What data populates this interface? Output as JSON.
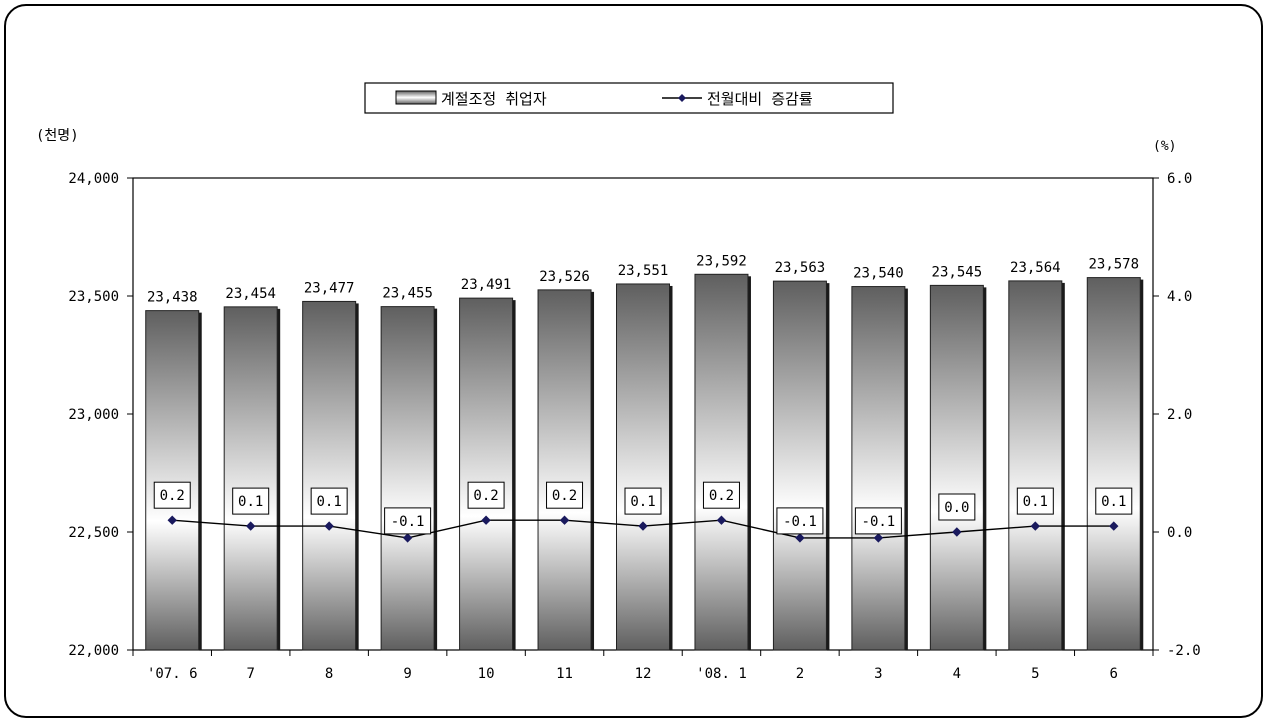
{
  "chart_data": {
    "type": "bar",
    "categories": [
      "'07. 6",
      "7",
      "8",
      "9",
      "10",
      "11",
      "12",
      "'08. 1",
      "2",
      "3",
      "4",
      "5",
      "6"
    ],
    "series": [
      {
        "name": "계절조정 취업자",
        "kind": "bar",
        "axis": "left",
        "values": [
          23438,
          23454,
          23477,
          23455,
          23491,
          23526,
          23551,
          23592,
          23563,
          23540,
          23545,
          23564,
          23578
        ],
        "labels": [
          "23,438",
          "23,454",
          "23,477",
          "23,455",
          "23,491",
          "23,526",
          "23,551",
          "23,592",
          "23,563",
          "23,540",
          "23,545",
          "23,564",
          "23,578"
        ]
      },
      {
        "name": "전월대비 증감률",
        "kind": "line",
        "axis": "right",
        "values": [
          0.2,
          0.1,
          0.1,
          -0.1,
          0.2,
          0.2,
          0.1,
          0.2,
          -0.1,
          -0.1,
          0.0,
          0.1,
          0.1
        ],
        "labels": [
          "0.2",
          "0.1",
          "0.1",
          "-0.1",
          "0.2",
          "0.2",
          "0.1",
          "0.2",
          "-0.1",
          "-0.1",
          "0.0",
          "0.1",
          "0.1"
        ]
      }
    ],
    "y_left": {
      "unit_label": "(천명)",
      "ylim": [
        22000,
        24000
      ],
      "ticks": [
        22000,
        22500,
        23000,
        23500,
        24000
      ],
      "tick_labels": [
        "22,000",
        "22,500",
        "23,000",
        "23,500",
        "24,000"
      ]
    },
    "y_right": {
      "unit_label": "(%)",
      "ylim": [
        -2.0,
        6.0
      ],
      "ticks": [
        -2.0,
        0.0,
        2.0,
        4.0,
        6.0
      ],
      "tick_labels": [
        "-2.0",
        "0.0",
        "2.0",
        "4.0",
        "6.0"
      ]
    },
    "legend": {
      "position": "top-center",
      "items": [
        "계절조정 취업자",
        "전월대비 증감률"
      ]
    },
    "grid": false,
    "colors": {
      "bar_dark": "#5f5f5f",
      "bar_light": "#ffffff",
      "line": "#000000",
      "marker": "#1a1a5e"
    }
  }
}
